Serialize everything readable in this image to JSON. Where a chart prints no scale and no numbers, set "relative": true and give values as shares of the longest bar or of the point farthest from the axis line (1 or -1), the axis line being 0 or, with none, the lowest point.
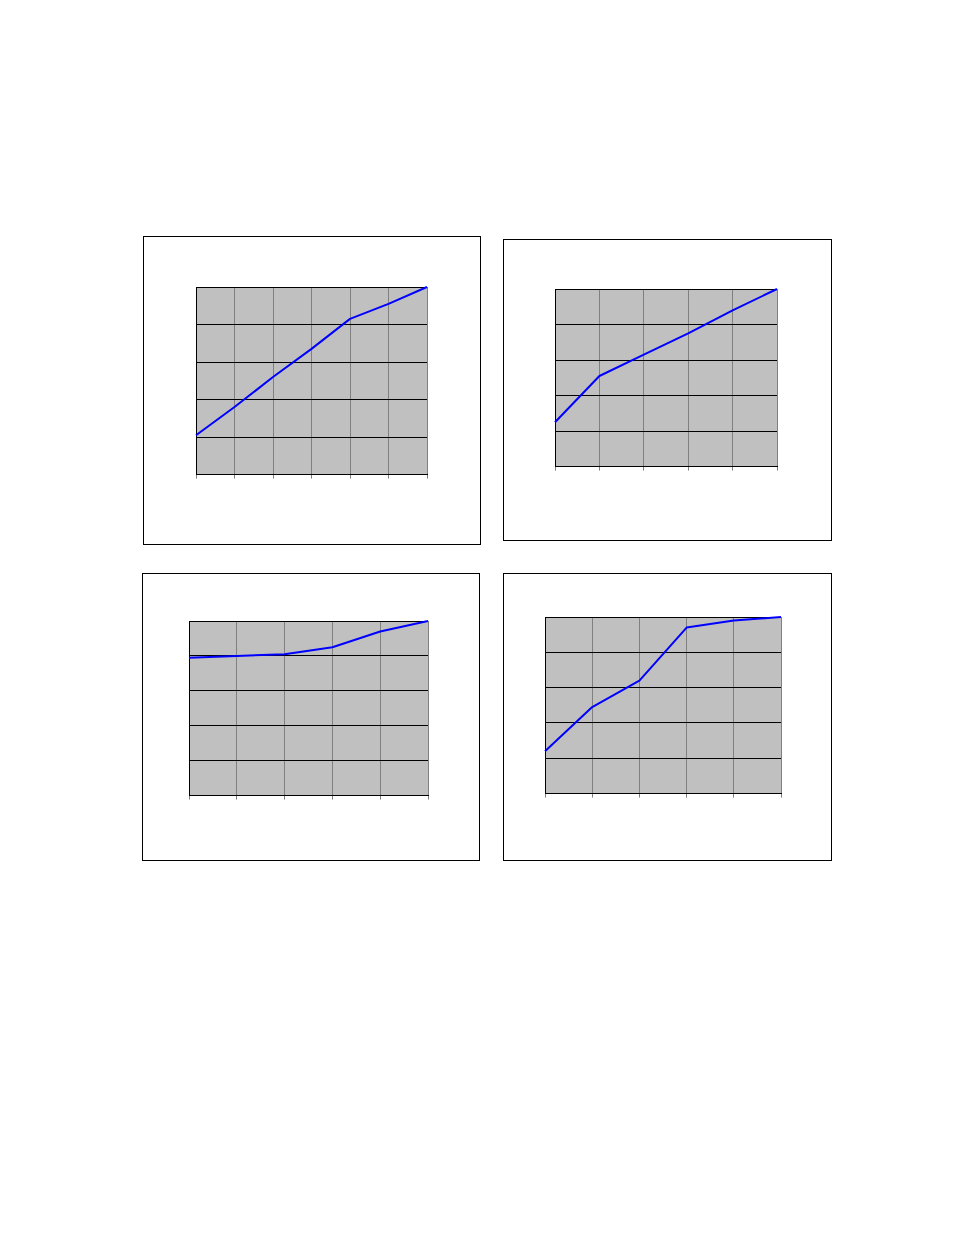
{
  "chart_data": [
    {
      "type": "line",
      "relative": true,
      "categories": [
        null,
        null,
        null,
        null,
        null,
        null,
        null
      ],
      "series": [
        {
          "color": "#0000ff",
          "values": [
            0.21,
            0.36,
            0.52,
            0.67,
            0.83,
            0.91,
            1
          ]
        }
      ],
      "grid": true,
      "legend": false,
      "marker": "none"
    },
    {
      "type": "line",
      "relative": true,
      "categories": [
        null,
        null,
        null,
        null,
        null,
        null
      ],
      "series": [
        {
          "color": "#0000ff",
          "values": [
            0.25,
            0.51,
            0.63,
            0.75,
            0.88,
            1
          ]
        }
      ],
      "grid": true,
      "legend": false,
      "marker": "none"
    },
    {
      "type": "line",
      "relative": true,
      "categories": [
        null,
        null,
        null,
        null,
        null,
        null
      ],
      "series": [
        {
          "color": "#0000ff",
          "values": [
            0.79,
            0.8,
            0.81,
            0.85,
            0.94,
            1
          ]
        }
      ],
      "grid": true,
      "legend": false,
      "marker": "none"
    },
    {
      "type": "line",
      "relative": true,
      "categories": [
        null,
        null,
        null,
        null,
        null,
        null
      ],
      "series": [
        {
          "color": "#0000ff",
          "values": [
            0.24,
            0.49,
            0.64,
            0.94,
            0.98,
            1
          ]
        }
      ],
      "grid": true,
      "legend": false,
      "marker": "none"
    }
  ]
}
